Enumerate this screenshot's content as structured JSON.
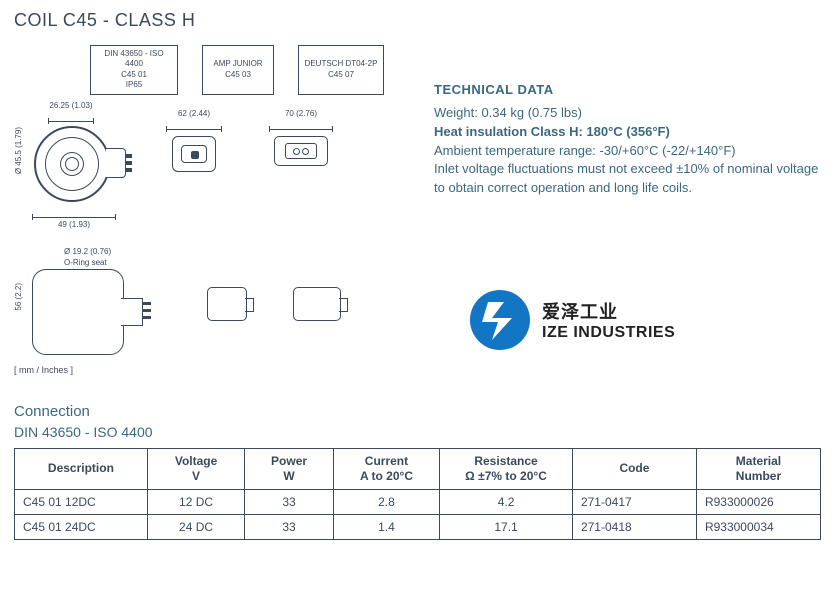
{
  "title": "COIL C45 - CLASS H",
  "label_boxes": {
    "box1": {
      "line1": "DIN 43650 - ISO 4400",
      "line2": "C45 01",
      "line3": "IP65"
    },
    "box2": {
      "line1": "AMP JUNIOR",
      "line2": "C45 03"
    },
    "box3": {
      "line1": "DEUTSCH DT04-2P",
      "line2": "C45 07"
    }
  },
  "dims": {
    "front_top": "26.25 (1.03)",
    "front_left": "Ø 45.5 (1.79)",
    "front_bottom": "49 (1.93)",
    "amp_top": "62 (2.44)",
    "deutsch_top": "70 (2.76)",
    "side_hole": "Ø 19.2 (0.76)",
    "side_oring": "O-Ring seat",
    "side_left": "56 (2.2)"
  },
  "units_note": "[ mm / Inches ]",
  "tech": {
    "heading": "TECHNICAL DATA",
    "weight": "Weight: 0.34 kg (0.75 lbs)",
    "heat": "Heat insulation Class H: 180°C (356°F)",
    "ambient": "Ambient temperature range: -30/+60°C (-22/+140°F)",
    "inlet1": "Inlet voltage fluctuations must not exceed ±10% of nominal voltage",
    "inlet2": "to obtain correct operation and long life coils."
  },
  "logo": {
    "cn": "爱泽工业",
    "en": "IZE INDUSTRIES",
    "color": "#1276c4"
  },
  "connection": {
    "title": "Connection",
    "subtitle": "DIN 43650 - ISO 4400"
  },
  "table": {
    "columns": [
      {
        "h1": "Description",
        "h2": "",
        "align": "left",
        "width": "15%"
      },
      {
        "h1": "Voltage",
        "h2": "V",
        "align": "center",
        "width": "11%"
      },
      {
        "h1": "Power",
        "h2": "W",
        "align": "center",
        "width": "10%"
      },
      {
        "h1": "Current",
        "h2": "A to 20°C",
        "align": "center",
        "width": "12%"
      },
      {
        "h1": "Resistance",
        "h2": "Ω ±7% to 20°C",
        "align": "center",
        "width": "15%"
      },
      {
        "h1": "Code",
        "h2": "",
        "align": "left",
        "width": "14%"
      },
      {
        "h1": "Material",
        "h2": "Number",
        "align": "left",
        "width": "14%"
      }
    ],
    "rows": [
      [
        "C45 01  12DC",
        "12 DC",
        "33",
        "2.8",
        "4.2",
        "271-0417",
        "R933000026"
      ],
      [
        "C45 01  24DC",
        "24 DC",
        "33",
        "1.4",
        "17.1",
        "271-0418",
        "R933000034"
      ]
    ]
  }
}
